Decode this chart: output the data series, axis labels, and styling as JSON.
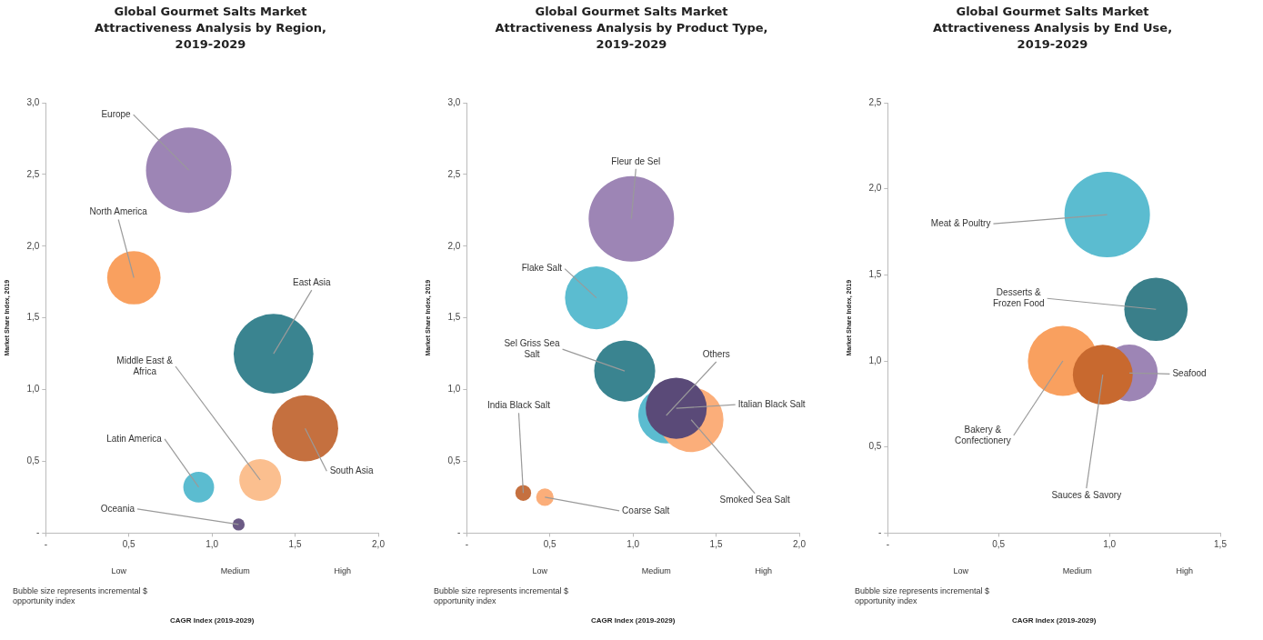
{
  "chart_data": [
    {
      "type": "bubble",
      "title": "Global Gourmet Salts Market Attractiveness Analysis by Region, 2019-2029",
      "xlabel": "CAGR Index (2019-2029)",
      "ylabel": "Market Share Index, 2019",
      "annotations": [
        "Low",
        "Medium",
        "High",
        "Bubble size represents incremental $ opportunity index"
      ],
      "grid": false,
      "xlim": [
        0,
        2
      ],
      "xticks": [
        {
          "value": 0,
          "label": "-"
        },
        {
          "value": 0.5,
          "label": "0,5"
        },
        {
          "value": 1,
          "label": "1,0"
        },
        {
          "value": 1.5,
          "label": "1,5"
        },
        {
          "value": 2,
          "label": "2,0"
        }
      ],
      "ylim": [
        0,
        3
      ],
      "yticks": [
        {
          "value": 0,
          "label": "-"
        },
        {
          "value": 0.5,
          "label": "0,5"
        },
        {
          "value": 1,
          "label": "1,0"
        },
        {
          "value": 1.5,
          "label": "1,5"
        },
        {
          "value": 2,
          "label": "2,0"
        },
        {
          "value": 2.5,
          "label": "2,5"
        },
        {
          "value": 3,
          "label": "3,0"
        }
      ],
      "series": [
        {
          "name": "Europe",
          "color": "#9d85b5",
          "x": [
            0.86
          ],
          "values": [
            2.53
          ],
          "sizes": [
            1
          ]
        },
        {
          "name": "North America",
          "color": "#f9a05f",
          "x": [
            0.53
          ],
          "values": [
            1.78
          ],
          "sizes": [
            0.39
          ]
        },
        {
          "name": "East Asia",
          "color": "#3a8490",
          "x": [
            1.37
          ],
          "values": [
            1.25
          ],
          "sizes": [
            0.87
          ]
        },
        {
          "name": "South Asia",
          "color": "#c5703f",
          "x": [
            1.56
          ],
          "values": [
            0.73
          ],
          "sizes": [
            0.6
          ]
        },
        {
          "name": "Middle East & Africa",
          "color": "#fbbf8f",
          "x": [
            1.29
          ],
          "values": [
            0.37
          ],
          "sizes": [
            0.24
          ]
        },
        {
          "name": "Latin America",
          "color": "#5bbcd0",
          "x": [
            0.92
          ],
          "values": [
            0.32
          ],
          "sizes": [
            0.13
          ]
        },
        {
          "name": "Oceania",
          "color": "#6b5a85",
          "x": [
            1.16
          ],
          "values": [
            0.06
          ],
          "sizes": [
            0.02
          ]
        }
      ]
    },
    {
      "type": "bubble",
      "title": "Global Gourmet Salts Market Attractiveness Analysis by Product Type, 2019-2029",
      "xlabel": "CAGR Index (2019-2029)",
      "ylabel": "Market Share Index, 2019",
      "annotations": [
        "Low",
        "Medium",
        "High",
        "Bubble size represents incremental $ opportunity index"
      ],
      "grid": false,
      "xlim": [
        0,
        2
      ],
      "xticks": [
        {
          "value": 0,
          "label": "-"
        },
        {
          "value": 0.5,
          "label": "0,5"
        },
        {
          "value": 1,
          "label": "1,0"
        },
        {
          "value": 1.5,
          "label": "1,5"
        },
        {
          "value": 2,
          "label": "2,0"
        }
      ],
      "ylim": [
        0,
        3
      ],
      "yticks": [
        {
          "value": 0,
          "label": "-"
        },
        {
          "value": 0.5,
          "label": "0,5"
        },
        {
          "value": 1,
          "label": "1,0"
        },
        {
          "value": 1.5,
          "label": "1,5"
        },
        {
          "value": 2,
          "label": "2,0"
        },
        {
          "value": 2.5,
          "label": "2,5"
        },
        {
          "value": 3,
          "label": "3,0"
        }
      ],
      "series": [
        {
          "name": "Fleur de Sel",
          "color": "#9d85b5",
          "x": [
            0.99
          ],
          "values": [
            2.19
          ],
          "sizes": [
            1
          ]
        },
        {
          "name": "Flake Salt",
          "color": "#5bbcd0",
          "x": [
            0.78
          ],
          "values": [
            1.64
          ],
          "sizes": [
            0.54
          ]
        },
        {
          "name": "Sel Griss Sea Salt",
          "color": "#3a8490",
          "x": [
            0.95
          ],
          "values": [
            1.13
          ],
          "sizes": [
            0.51
          ]
        },
        {
          "name": "Others",
          "color": "#5bbcd0",
          "x": [
            1.2
          ],
          "values": [
            0.82
          ],
          "sizes": [
            0.43
          ]
        },
        {
          "name": "Smoked Sea Salt",
          "color": "#fbae7a",
          "x": [
            1.35
          ],
          "values": [
            0.79
          ],
          "sizes": [
            0.57
          ]
        },
        {
          "name": "Italian Black Salt",
          "color": "#5a4a78",
          "x": [
            1.26
          ],
          "values": [
            0.87
          ],
          "sizes": [
            0.51
          ]
        },
        {
          "name": "India Black Salt",
          "color": "#c5703f",
          "x": [
            0.34
          ],
          "values": [
            0.28
          ],
          "sizes": [
            0.034
          ]
        },
        {
          "name": "Coarse Salt",
          "color": "#fbae7a",
          "x": [
            0.47
          ],
          "values": [
            0.25
          ],
          "sizes": [
            0.042
          ]
        }
      ]
    },
    {
      "type": "bubble",
      "title": "Global Gourmet Salts Market Attractiveness Analysis by End Use, 2019-2029",
      "xlabel": "CAGR Index (2019-2029)",
      "ylabel": "Market Share Index, 2019",
      "annotations": [
        "Low",
        "Medium",
        "High",
        "Bubble size represents incremental $ opportunity index"
      ],
      "grid": false,
      "xlim": [
        0,
        1.5
      ],
      "xticks": [
        {
          "value": 0,
          "label": "-"
        },
        {
          "value": 0.5,
          "label": "0,5"
        },
        {
          "value": 1,
          "label": "1,0"
        },
        {
          "value": 1.5,
          "label": "1,5"
        }
      ],
      "ylim": [
        0,
        2.5
      ],
      "yticks": [
        {
          "value": 0,
          "label": "-"
        },
        {
          "value": 0.5,
          "label": "0,5"
        },
        {
          "value": 1,
          "label": "1,0"
        },
        {
          "value": 1.5,
          "label": "1,5"
        },
        {
          "value": 2,
          "label": "2,0"
        },
        {
          "value": 2.5,
          "label": "2,5"
        }
      ],
      "series": [
        {
          "name": "Meat & Poultry",
          "color": "#5bbcd0",
          "x": [
            0.99
          ],
          "values": [
            1.85
          ],
          "sizes": [
            1
          ]
        },
        {
          "name": "Desserts & Frozen Food",
          "color": "#3a7f8a",
          "x": [
            1.21
          ],
          "values": [
            1.3
          ],
          "sizes": [
            0.55
          ]
        },
        {
          "name": "Bakery & Confectionery",
          "color": "#f9a05f",
          "x": [
            0.79
          ],
          "values": [
            1.0
          ],
          "sizes": [
            0.67
          ]
        },
        {
          "name": "Seafood",
          "color": "#9d85b5",
          "x": [
            1.09
          ],
          "values": [
            0.93
          ],
          "sizes": [
            0.44
          ]
        },
        {
          "name": "Sauces & Savory",
          "color": "#c8692f",
          "x": [
            0.97
          ],
          "values": [
            0.92
          ],
          "sizes": [
            0.49
          ]
        }
      ]
    }
  ]
}
